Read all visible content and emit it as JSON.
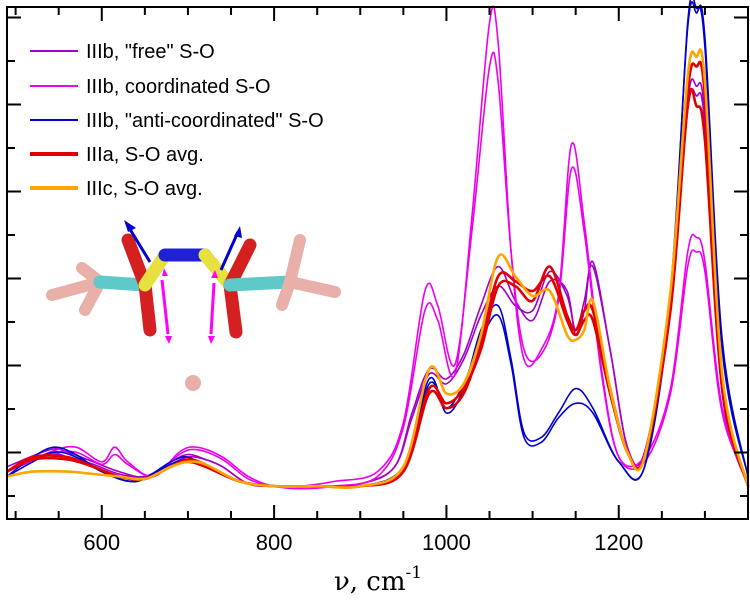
{
  "chart_data": {
    "type": "line",
    "title": "",
    "xlabel": "ν, cm",
    "xlabel_superscript": "-1",
    "ylabel": "",
    "xlim": [
      490,
      1350
    ],
    "ylim": [
      0,
      1
    ],
    "x_ticks": [
      600,
      800,
      1000,
      1200
    ],
    "grid": false,
    "legend_position": "top-left",
    "colors": {
      "IIIb_free": "#a000c8",
      "IIIb_coord": "#ee00ee",
      "IIIb_anti": "#0000d0",
      "IIIa": "#e00000",
      "IIIc": "#ffa500"
    },
    "legend": [
      {
        "label": "IIIb, \"free\" S-O",
        "color": "#a000c8"
      },
      {
        "label": "IIIb, coordinated S-O",
        "color": "#ee00ee"
      },
      {
        "label": "IIIb, \"anti-coordinated\" S-O",
        "color": "#0000d0"
      },
      {
        "label": "IIIa, S-O avg.",
        "color": "#e00000"
      },
      {
        "label": "IIIc, S-O avg.",
        "color": "#ffa500"
      }
    ],
    "series": [
      {
        "group": "IIIb_free",
        "color": "#a000c8",
        "x": [
          490,
          540,
          560,
          590,
          620,
          650,
          680,
          700,
          720,
          740,
          770,
          800,
          850,
          900,
          940,
          960,
          980,
          1000,
          1020,
          1040,
          1060,
          1080,
          1100,
          1120,
          1140,
          1150,
          1160,
          1170,
          1190,
          1210,
          1230,
          1260,
          1280,
          1290,
          1300,
          1320,
          1350
        ],
        "y": [
          0.06,
          0.095,
          0.09,
          0.07,
          0.05,
          0.04,
          0.07,
          0.085,
          0.075,
          0.06,
          0.025,
          0.02,
          0.02,
          0.025,
          0.06,
          0.17,
          0.26,
          0.24,
          0.29,
          0.39,
          0.47,
          0.4,
          0.36,
          0.44,
          0.42,
          0.33,
          0.38,
          0.48,
          0.3,
          0.1,
          0.09,
          0.4,
          0.81,
          0.84,
          0.78,
          0.22,
          0.02
        ]
      },
      {
        "group": "IIIb_free",
        "color": "#a000c8",
        "x": [
          490,
          540,
          560,
          590,
          620,
          650,
          680,
          700,
          720,
          740,
          770,
          800,
          850,
          900,
          940,
          960,
          980,
          1000,
          1020,
          1040,
          1060,
          1080,
          1100,
          1120,
          1140,
          1150,
          1160,
          1170,
          1190,
          1210,
          1230,
          1260,
          1280,
          1290,
          1300,
          1320,
          1350
        ],
        "y": [
          0.05,
          0.085,
          0.08,
          0.065,
          0.045,
          0.04,
          0.065,
          0.08,
          0.075,
          0.06,
          0.025,
          0.02,
          0.02,
          0.025,
          0.06,
          0.16,
          0.25,
          0.23,
          0.28,
          0.37,
          0.43,
          0.39,
          0.38,
          0.46,
          0.41,
          0.34,
          0.4,
          0.47,
          0.3,
          0.1,
          0.09,
          0.39,
          0.79,
          0.82,
          0.76,
          0.21,
          0.02
        ]
      },
      {
        "group": "IIIb_coord",
        "color": "#ee00ee",
        "x": [
          490,
          540,
          570,
          600,
          615,
          630,
          660,
          690,
          710,
          740,
          770,
          800,
          830,
          870,
          920,
          950,
          975,
          990,
          1010,
          1030,
          1050,
          1060,
          1075,
          1090,
          1110,
          1130,
          1145,
          1160,
          1180,
          1200,
          1230,
          1260,
          1280,
          1290,
          1300,
          1320,
          1350
        ],
        "y": [
          0.05,
          0.09,
          0.1,
          0.07,
          0.1,
          0.07,
          0.04,
          0.09,
          0.1,
          0.08,
          0.04,
          0.02,
          0.02,
          0.03,
          0.05,
          0.15,
          0.42,
          0.39,
          0.27,
          0.55,
          0.88,
          0.85,
          0.5,
          0.3,
          0.29,
          0.4,
          0.67,
          0.54,
          0.25,
          0.08,
          0.08,
          0.22,
          0.5,
          0.53,
          0.48,
          0.18,
          0.03
        ]
      },
      {
        "group": "IIIb_coord",
        "color": "#ee00ee",
        "x": [
          490,
          540,
          570,
          600,
          615,
          630,
          660,
          690,
          710,
          740,
          770,
          800,
          830,
          870,
          920,
          950,
          975,
          990,
          1010,
          1030,
          1050,
          1060,
          1075,
          1090,
          1110,
          1130,
          1145,
          1160,
          1180,
          1200,
          1230,
          1260,
          1280,
          1290,
          1300,
          1320,
          1350
        ],
        "y": [
          0.05,
          0.085,
          0.09,
          0.065,
          0.085,
          0.065,
          0.04,
          0.085,
          0.095,
          0.075,
          0.035,
          0.02,
          0.015,
          0.02,
          0.04,
          0.14,
          0.38,
          0.36,
          0.25,
          0.58,
          0.97,
          0.93,
          0.5,
          0.28,
          0.3,
          0.41,
          0.72,
          0.56,
          0.26,
          0.08,
          0.07,
          0.21,
          0.47,
          0.5,
          0.46,
          0.17,
          0.03
        ]
      },
      {
        "group": "IIIb_anti",
        "color": "#0000d0",
        "x": [
          490,
          520,
          545,
          570,
          600,
          640,
          680,
          700,
          720,
          760,
          800,
          850,
          900,
          950,
          980,
          1000,
          1020,
          1040,
          1060,
          1075,
          1090,
          1110,
          1130,
          1150,
          1170,
          1200,
          1230,
          1260,
          1280,
          1290,
          1300,
          1320,
          1350
        ],
        "y": [
          0.04,
          0.08,
          0.1,
          0.085,
          0.05,
          0.03,
          0.07,
          0.08,
          0.06,
          0.03,
          0.02,
          0.02,
          0.02,
          0.06,
          0.24,
          0.17,
          0.22,
          0.34,
          0.39,
          0.28,
          0.13,
          0.12,
          0.17,
          0.22,
          0.18,
          0.07,
          0.06,
          0.4,
          0.97,
          1.0,
          0.92,
          0.3,
          0.04
        ]
      },
      {
        "group": "IIIb_anti",
        "color": "#0000d0",
        "x": [
          490,
          520,
          545,
          570,
          600,
          640,
          680,
          700,
          720,
          760,
          800,
          850,
          900,
          950,
          980,
          1000,
          1020,
          1040,
          1060,
          1075,
          1090,
          1110,
          1130,
          1150,
          1170,
          1200,
          1230,
          1260,
          1280,
          1290,
          1300,
          1320,
          1350
        ],
        "y": [
          0.04,
          0.07,
          0.09,
          0.08,
          0.05,
          0.03,
          0.065,
          0.075,
          0.06,
          0.03,
          0.02,
          0.02,
          0.02,
          0.06,
          0.23,
          0.18,
          0.23,
          0.32,
          0.37,
          0.27,
          0.12,
          0.11,
          0.16,
          0.19,
          0.17,
          0.07,
          0.06,
          0.42,
          0.96,
          0.99,
          0.94,
          0.32,
          0.04
        ]
      },
      {
        "group": "IIIa",
        "color": "#e00000",
        "x": [
          490,
          520,
          560,
          590,
          620,
          650,
          680,
          700,
          720,
          760,
          800,
          850,
          900,
          950,
          980,
          1000,
          1020,
          1040,
          1060,
          1080,
          1100,
          1120,
          1140,
          1150,
          1160,
          1170,
          1190,
          1210,
          1230,
          1260,
          1280,
          1290,
          1300,
          1320,
          1350
        ],
        "y": [
          0.05,
          0.08,
          0.08,
          0.06,
          0.04,
          0.035,
          0.06,
          0.075,
          0.065,
          0.03,
          0.02,
          0.02,
          0.02,
          0.05,
          0.22,
          0.19,
          0.22,
          0.3,
          0.43,
          0.43,
          0.4,
          0.47,
          0.37,
          0.34,
          0.38,
          0.38,
          0.22,
          0.09,
          0.08,
          0.38,
          0.8,
          0.8,
          0.73,
          0.22,
          0.02
        ]
      },
      {
        "group": "IIIa",
        "color": "#e00000",
        "x": [
          490,
          520,
          560,
          590,
          620,
          650,
          680,
          700,
          720,
          760,
          800,
          850,
          900,
          950,
          980,
          1000,
          1020,
          1040,
          1060,
          1080,
          1100,
          1120,
          1140,
          1150,
          1160,
          1170,
          1190,
          1210,
          1230,
          1260,
          1280,
          1290,
          1300,
          1320,
          1350
        ],
        "y": [
          0.05,
          0.075,
          0.075,
          0.06,
          0.04,
          0.035,
          0.06,
          0.07,
          0.06,
          0.03,
          0.02,
          0.02,
          0.02,
          0.05,
          0.21,
          0.18,
          0.21,
          0.31,
          0.45,
          0.44,
          0.42,
          0.45,
          0.36,
          0.33,
          0.36,
          0.36,
          0.21,
          0.09,
          0.08,
          0.4,
          0.83,
          0.88,
          0.82,
          0.24,
          0.02
        ]
      },
      {
        "group": "IIIc",
        "color": "#ffa500",
        "x": [
          490,
          520,
          560,
          590,
          620,
          650,
          680,
          700,
          720,
          760,
          800,
          850,
          900,
          950,
          980,
          1000,
          1020,
          1040,
          1060,
          1080,
          1100,
          1120,
          1140,
          1150,
          1160,
          1170,
          1190,
          1210,
          1230,
          1260,
          1280,
          1290,
          1300,
          1320,
          1350
        ],
        "y": [
          0.04,
          0.05,
          0.05,
          0.045,
          0.04,
          0.035,
          0.06,
          0.07,
          0.065,
          0.03,
          0.02,
          0.02,
          0.02,
          0.06,
          0.26,
          0.21,
          0.23,
          0.33,
          0.49,
          0.45,
          0.41,
          0.42,
          0.33,
          0.32,
          0.34,
          0.4,
          0.22,
          0.09,
          0.08,
          0.42,
          0.86,
          0.9,
          0.85,
          0.25,
          0.02
        ]
      }
    ]
  }
}
